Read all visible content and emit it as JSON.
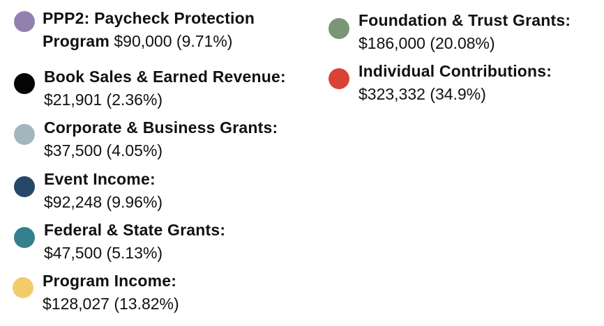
{
  "chart_data": {
    "type": "pie",
    "title": "",
    "legend_placement": "full-figure",
    "slices": [
      {
        "label": "PPP2: Paycheck Protection Program",
        "value": 90000,
        "value_text": "$90,000",
        "percent_text": "(9.71%)",
        "color": "#9281ae"
      },
      {
        "label": "Book Sales & Earned Revenue:",
        "value": 21901,
        "value_text": "$21,901",
        "percent_text": "(2.36%)",
        "color": "#050505"
      },
      {
        "label": "Corporate & Business Grants:",
        "value": 37500,
        "value_text": "$37,500",
        "percent_text": "(4.05%)",
        "color": "#a3b6bf"
      },
      {
        "label": "Event Income:",
        "value": 92248,
        "value_text": "$92,248",
        "percent_text": "(9.96%)",
        "color": "#274766"
      },
      {
        "label": "Federal & State Grants:",
        "value": 47500,
        "value_text": "$47,500",
        "percent_text": "(5.13%)",
        "color": "#35808d"
      },
      {
        "label": "Program Income:",
        "value": 128027,
        "value_text": "$128,027",
        "percent_text": "(13.82%)",
        "color": "#f2cb6b"
      },
      {
        "label": "Foundation & Trust Grants:",
        "value": 186000,
        "value_text": "$186,000",
        "percent_text": "(20.08%)",
        "color": "#7a9676"
      },
      {
        "label": "Individual Contributions:",
        "value": 323332,
        "value_text": "$323,332",
        "percent_text": "(34.9%)",
        "color": "#d94335"
      }
    ]
  }
}
